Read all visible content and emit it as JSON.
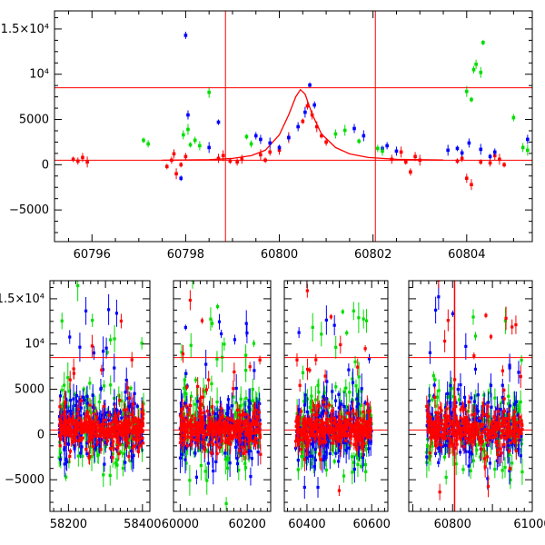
{
  "chart_data": [
    {
      "type": "scatter",
      "title": "",
      "xlabel": "",
      "ylabel": "",
      "xlim": [
        60795.2,
        60805.4
      ],
      "ylim": [
        -8500,
        17000
      ],
      "xticks": [
        60796,
        60798,
        60800,
        60802,
        60804
      ],
      "xtick_labels": [
        "60796",
        "60798",
        "60800",
        "60802",
        "60804"
      ],
      "yticks": [
        -5000,
        0,
        5000,
        10000,
        15000
      ],
      "ytick_labels": [
        "−5000",
        "0",
        "5000",
        "10⁴",
        "1.5×10⁴"
      ],
      "hlines": [
        8500,
        500
      ],
      "vlines": [
        60798.85,
        60802.05
      ],
      "model_curve": {
        "color": "#ff0000",
        "x": [
          60797.5,
          60798.5,
          60799.0,
          60799.4,
          60799.7,
          60800.0,
          60800.2,
          60800.35,
          60800.45,
          60800.55,
          60800.7,
          60800.9,
          60801.2,
          60801.5,
          60801.9,
          60802.5,
          60803.5
        ],
        "y": [
          500,
          560,
          700,
          1000,
          1600,
          3300,
          5500,
          7500,
          8300,
          7800,
          5600,
          3400,
          1900,
          1200,
          800,
          600,
          520
        ]
      },
      "series": [
        {
          "name": "red",
          "color": "#ff0000",
          "x": [
            60795.6,
            60795.7,
            60795.8,
            60795.9,
            60797.6,
            60797.7,
            60797.75,
            60797.8,
            60797.9,
            60798.0,
            60798.7,
            60798.8,
            60798.95,
            60799.1,
            60799.2,
            60799.6,
            60799.7,
            60799.8,
            60800.0,
            60800.2,
            60800.5,
            60800.6,
            60800.7,
            60800.8,
            60800.9,
            60801.0,
            60802.4,
            60802.6,
            60802.7,
            60802.8,
            60802.9,
            60803.0,
            60803.8,
            60803.9,
            60804.0,
            60804.1,
            60804.3,
            60804.5,
            60804.6,
            60804.7,
            60804.8
          ],
          "y": [
            600,
            400,
            800,
            300,
            -200,
            500,
            1200,
            -1000,
            0,
            900,
            700,
            1000,
            400,
            300,
            600,
            1100,
            500,
            1400,
            1600,
            3000,
            4800,
            6500,
            5500,
            4200,
            3200,
            2500,
            600,
            1400,
            300,
            -800,
            900,
            500,
            400,
            700,
            -1500,
            -2200,
            300,
            200,
            1000,
            600,
            0
          ]
        },
        {
          "name": "blue",
          "color": "#0000ff",
          "x": [
            60797.9,
            60798.0,
            60798.05,
            60798.5,
            60798.7,
            60799.5,
            60799.6,
            60799.8,
            60800.0,
            60800.2,
            60800.4,
            60800.55,
            60800.65,
            60800.75,
            60801.6,
            60801.8,
            60802.2,
            60802.3,
            60802.5,
            60803.6,
            60803.8,
            60803.9,
            60804.05,
            60804.3,
            60804.5,
            60804.6,
            60805.3
          ],
          "y": [
            -1500,
            14300,
            5500,
            1900,
            4700,
            3200,
            2800,
            2400,
            1900,
            3000,
            4200,
            5800,
            8800,
            6600,
            4000,
            3200,
            1800,
            2100,
            1500,
            1600,
            1800,
            1300,
            2400,
            1700,
            900,
            1400,
            2800
          ]
        },
        {
          "name": "green",
          "color": "#00dd00",
          "x": [
            60797.1,
            60797.2,
            60797.95,
            60798.05,
            60798.1,
            60798.2,
            60798.3,
            60798.5,
            60799.3,
            60799.4,
            60801.2,
            60801.4,
            60801.7,
            60802.1,
            60802.2,
            60804.0,
            60804.1,
            60804.15,
            60804.2,
            60804.3,
            60804.35,
            60805.0,
            60805.2,
            60805.3
          ],
          "y": [
            2700,
            2300,
            3300,
            3900,
            2200,
            2700,
            2100,
            8000,
            3100,
            2300,
            3400,
            3800,
            2600,
            1800,
            1500,
            8100,
            7200,
            10500,
            11100,
            10200,
            13500,
            5200,
            1900,
            1600
          ]
        }
      ]
    },
    {
      "type": "scatter",
      "title": "",
      "xlabel": "",
      "ylabel": "",
      "segments": [
        {
          "xlim": [
            58150,
            58420
          ],
          "xticks": [
            58200,
            58400
          ],
          "xtick_labels": [
            "58200",
            "58400"
          ],
          "season_range": [
            58175,
            58405
          ]
        },
        {
          "xlim": [
            59980,
            60270
          ],
          "xticks": [
            60000,
            60200
          ],
          "xtick_labels": [
            "60000",
            "60200"
          ],
          "season_range": [
            60000,
            60240
          ]
        },
        {
          "xlim": [
            60330,
            60650
          ],
          "xticks": [
            60400,
            60600
          ],
          "xtick_labels": [
            "60400",
            "60600"
          ],
          "season_range": [
            60365,
            60600
          ]
        },
        {
          "xlim": [
            60690,
            61000
          ],
          "xticks": [
            60800,
            61000
          ],
          "xtick_labels": [
            "60800",
            "61000"
          ],
          "season_range": [
            60735,
            60975
          ]
        }
      ],
      "ylim": [
        -8500,
        17000
      ],
      "yticks": [
        -5000,
        0,
        5000,
        10000,
        15000
      ],
      "ytick_labels": [
        "−5000",
        "0",
        "5000",
        "10⁴",
        "1.5×10⁴"
      ],
      "hlines": [
        8500,
        500
      ],
      "vlines": [
        60805
      ],
      "series_names": [
        "green",
        "blue",
        "red"
      ],
      "series_colors": [
        "#00dd00",
        "#0000ff",
        "#ff0000"
      ],
      "typical_scatter_sigma": [
        3000,
        2600,
        1800
      ],
      "points_per_season": 180
    }
  ]
}
